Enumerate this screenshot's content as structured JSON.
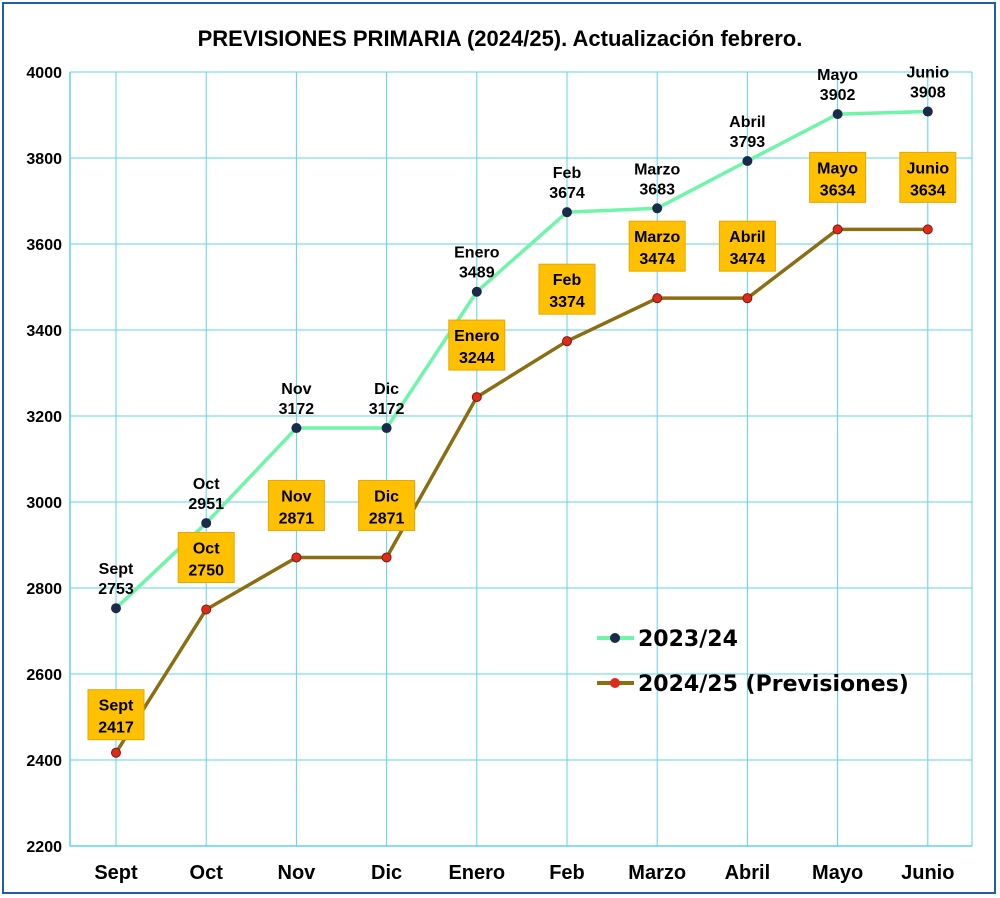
{
  "chart_data": {
    "type": "line",
    "title": "PREVISIONES PRIMARIA (2024/25). Actualización febrero.",
    "categories": [
      "Sept",
      "Oct",
      "Nov",
      "Dic",
      "Enero",
      "Feb",
      "Marzo",
      "Abril",
      "Mayo",
      "Junio"
    ],
    "yticks": [
      "2200",
      "2400",
      "2600",
      "2800",
      "3000",
      "3200",
      "3400",
      "3600",
      "3800",
      "4000"
    ],
    "ylim": [
      2200,
      4000
    ],
    "grid": true,
    "legend_position": "bottom-right",
    "series": [
      {
        "name": "2023/24",
        "line_color": "#6ef5a8",
        "marker_color": "#1a2a4a",
        "values": [
          2753,
          2951,
          3172,
          3172,
          3489,
          3674,
          3683,
          3793,
          3902,
          3908
        ]
      },
      {
        "name": "2024/25 (Previsiones)",
        "line_color": "#8b6d12",
        "marker_color": "#e02a1a",
        "label_bg": "#ffc000",
        "values": [
          2417,
          2750,
          2871,
          2871,
          3244,
          3374,
          3474,
          3474,
          3634,
          3634
        ]
      }
    ]
  }
}
